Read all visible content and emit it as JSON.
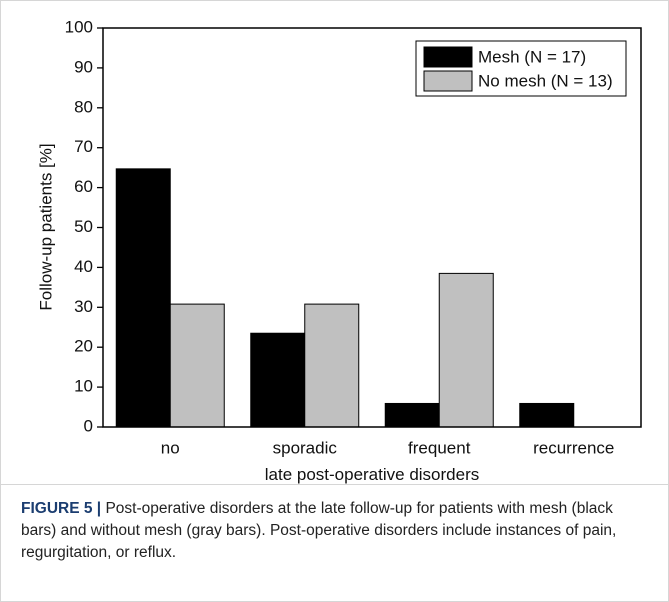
{
  "chart_data": {
    "type": "bar",
    "categories": [
      "no",
      "sporadic",
      "frequent",
      "recurrence"
    ],
    "series": [
      {
        "name": "Mesh (N = 17)",
        "color": "#000000",
        "values": [
          64.7,
          23.5,
          5.9,
          5.9
        ]
      },
      {
        "name": "No mesh (N = 13)",
        "color": "#c0c0c0",
        "values": [
          30.8,
          30.8,
          38.5,
          0
        ]
      }
    ],
    "ylabel": "Follow-up patients [%]",
    "xlabel": "late post-operative disorders",
    "ylim": [
      0,
      100
    ],
    "yticks": [
      0,
      10,
      20,
      30,
      40,
      50,
      60,
      70,
      80,
      90,
      100
    ],
    "legend": "upper right"
  },
  "caption": {
    "label": "FIGURE 5 |",
    "text": "Post-operative disorders at the late follow-up for patients with mesh (black bars) and without mesh (gray bars). Post-operative disorders include instances of pain, regurgitation, or reflux."
  }
}
